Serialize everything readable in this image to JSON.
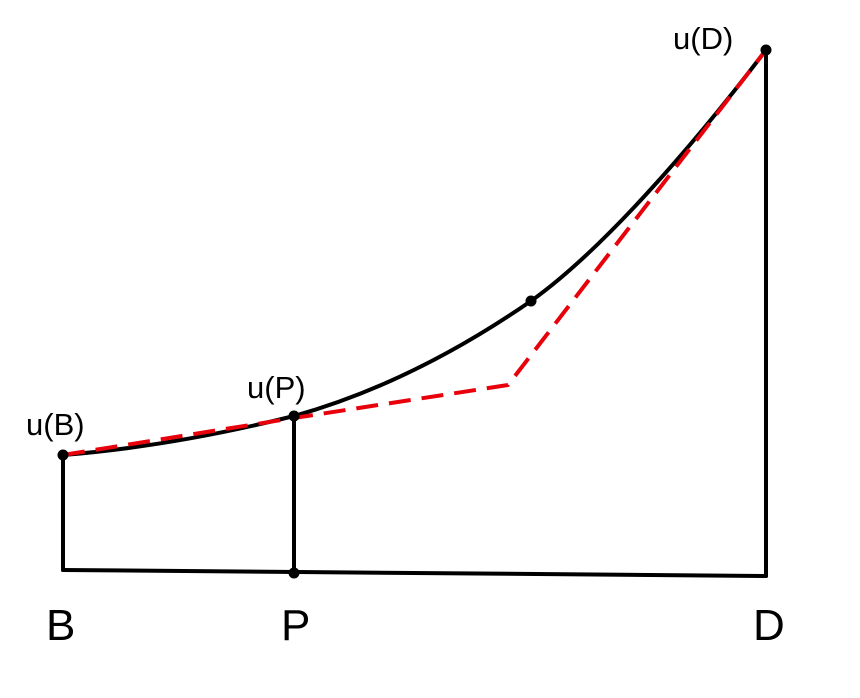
{
  "diagram": {
    "labels": {
      "u_b": "u(B)",
      "u_p": "u(P)",
      "u_d": "u(D)",
      "b": "B",
      "p": "P",
      "d": "D"
    },
    "colors": {
      "curve": "#000000",
      "frame": "#000000",
      "dashed_path": "#e8000b",
      "points": "#000000"
    }
  }
}
